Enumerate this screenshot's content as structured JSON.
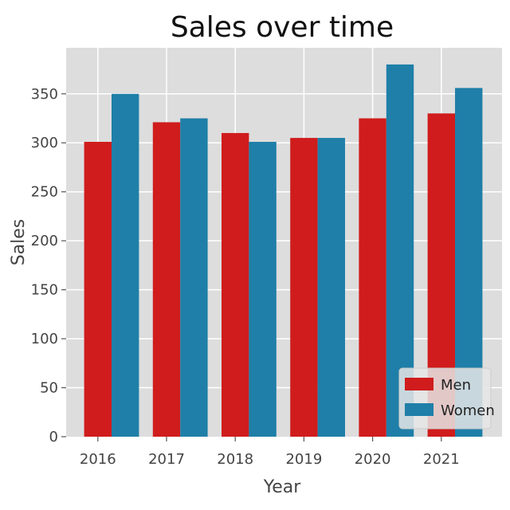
{
  "chart_data": {
    "type": "bar",
    "title": "Sales over time",
    "xlabel": "Year",
    "ylabel": "Sales",
    "categories": [
      "2016",
      "2017",
      "2018",
      "2019",
      "2020",
      "2021"
    ],
    "series": [
      {
        "name": "Men",
        "values": [
          301,
          321,
          310,
          305,
          325,
          330
        ],
        "color": "#d01c1c"
      },
      {
        "name": "Women",
        "values": [
          350,
          325,
          301,
          305,
          380,
          356
        ],
        "color": "#1f7fa8"
      }
    ],
    "ylim": [
      0,
      397
    ],
    "yticks": [
      0,
      50,
      100,
      150,
      200,
      250,
      300,
      350
    ],
    "grid": true,
    "legend_position": "lower-right",
    "background_color": "#dddddd",
    "grid_color": "#ffffff"
  }
}
